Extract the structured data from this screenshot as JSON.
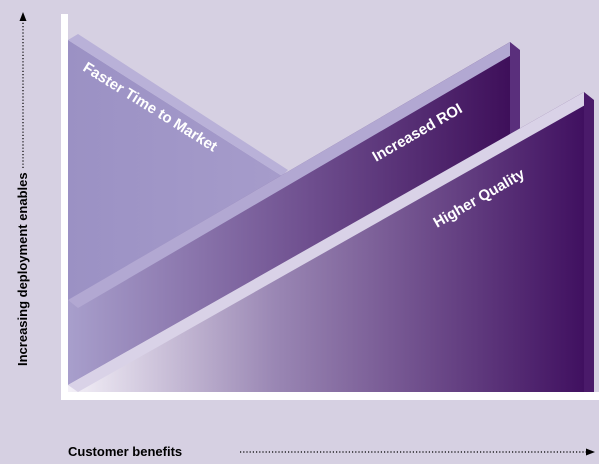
{
  "colors": {
    "background": "#d6d0e2",
    "axis": "#ffffff",
    "wedge_light": "#9f95c5",
    "wedge_dark": "#3f0f5c",
    "wedge_fade": "#f1eef6",
    "arrow": "#000000"
  },
  "wedges": [
    {
      "label": "Faster Time to Market"
    },
    {
      "label": "Increased ROI"
    },
    {
      "label": "Higher Quality"
    }
  ],
  "y_axis": {
    "label": "Increasing deployment enables"
  },
  "x_axis": {
    "label": "Customer benefits"
  }
}
